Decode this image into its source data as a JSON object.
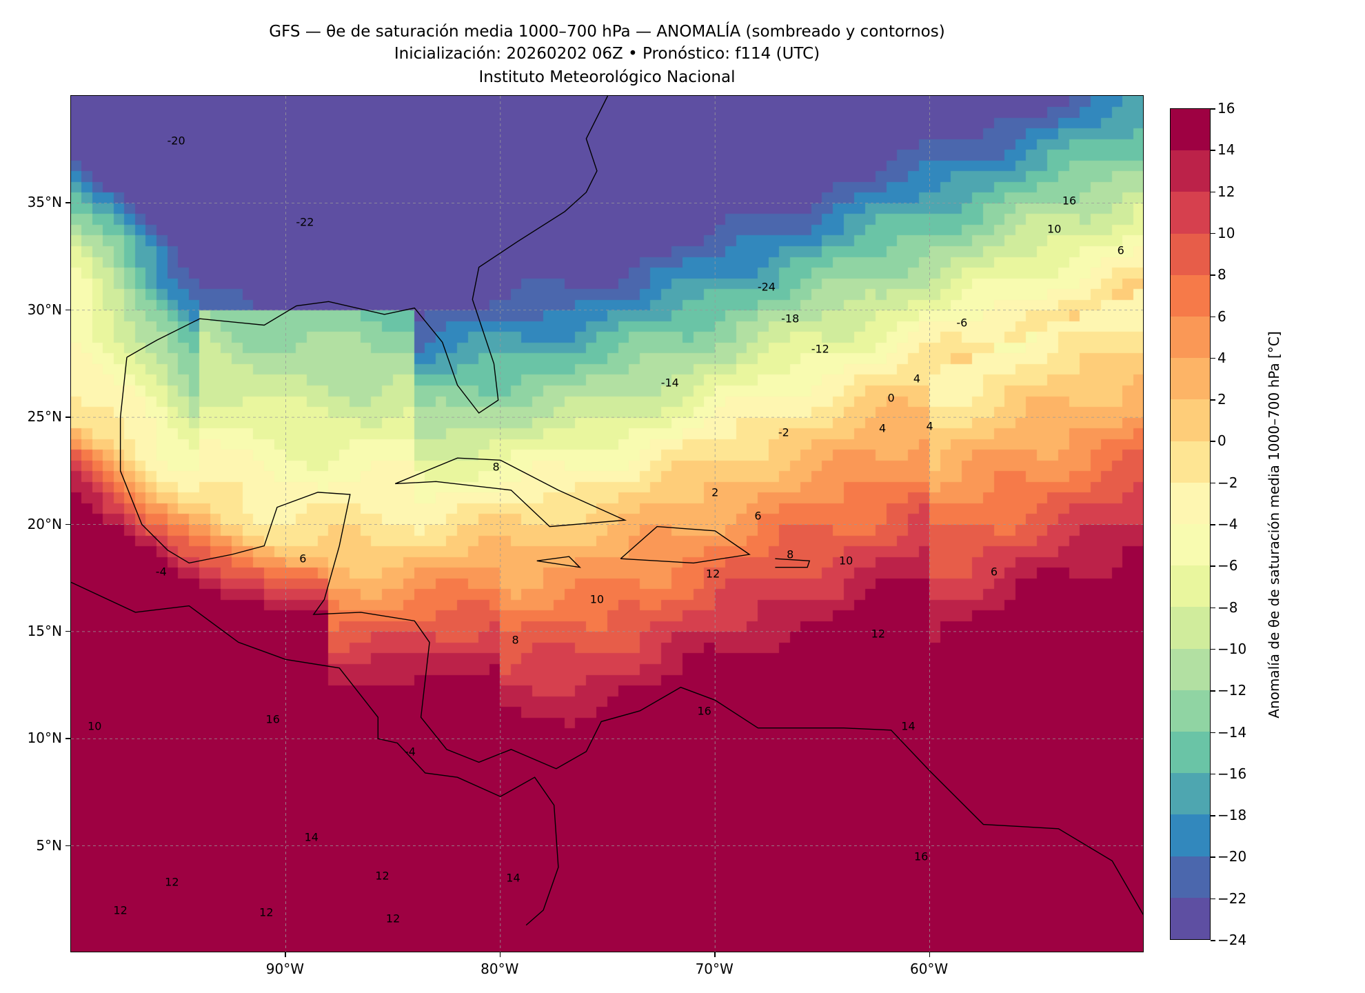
{
  "title": {
    "line1": "GFS — θe de saturación media 1000–700 hPa — ANOMALÍA (sombreado y contornos)",
    "line2": "Inicialización: 20260202 06Z   •   Pronóstico: f114 (UTC)",
    "line3": "Instituto Meteorológico Nacional"
  },
  "chart_data": {
    "type": "heatmap",
    "projection": "lat-lon",
    "lon_range": [
      -100,
      -50
    ],
    "lat_range": [
      0,
      40
    ],
    "xticks": [
      {
        "value": -90,
        "label": "90°W"
      },
      {
        "value": -80,
        "label": "80°W"
      },
      {
        "value": -70,
        "label": "70°W"
      },
      {
        "value": -60,
        "label": "60°W"
      }
    ],
    "yticks": [
      {
        "value": 35,
        "label": "35°N"
      },
      {
        "value": 30,
        "label": "30°N"
      },
      {
        "value": 25,
        "label": "25°N"
      },
      {
        "value": 20,
        "label": "20°N"
      },
      {
        "value": 15,
        "label": "15°N"
      },
      {
        "value": 10,
        "label": "10°N"
      },
      {
        "value": 5,
        "label": "5°N"
      }
    ],
    "grid": true,
    "colorbar": {
      "label": "Anomalía de θe de saturación media 1000–700 hPa [°C]",
      "range": [
        -24,
        16
      ],
      "levels": [
        16,
        14,
        12,
        10,
        8,
        6,
        4,
        2,
        0,
        -2,
        -4,
        -6,
        -8,
        -10,
        -12,
        -14,
        -16,
        -18,
        -20,
        -22,
        -24
      ],
      "tick_labels": [
        "16",
        "14",
        "12",
        "10",
        "8",
        "6",
        "4",
        "2",
        "0",
        "−2",
        "−4",
        "−6",
        "−8",
        "−10",
        "−12",
        "−14",
        "−16",
        "−18",
        "−20",
        "−22",
        "−24"
      ],
      "colors": [
        "#9e0142",
        "#bc2249",
        "#d6404e",
        "#e75d49",
        "#f67a49",
        "#fa9856",
        "#fdb466",
        "#fecd79",
        "#fee593",
        "#fef6b1",
        "#f8fbb0",
        "#e9f69e",
        "#d0ec9c",
        "#b2e0a2",
        "#90d4a3",
        "#6ac4a6",
        "#4ea6b0",
        "#3288bd",
        "#4b67ad",
        "#5e4fa2"
      ]
    },
    "contour_labels": [
      {
        "text": "-20",
        "lon": -95.1,
        "lat": 37.9
      },
      {
        "text": "-22",
        "lon": -89.1,
        "lat": 34.1
      },
      {
        "text": "-24",
        "lon": -67.6,
        "lat": 31.1
      },
      {
        "text": "-18",
        "lon": -66.5,
        "lat": 29.6
      },
      {
        "text": "-12",
        "lon": -65.1,
        "lat": 28.2
      },
      {
        "text": "-14",
        "lon": -72.1,
        "lat": 26.6
      },
      {
        "text": "-6",
        "lon": -58.5,
        "lat": 29.4
      },
      {
        "text": "16",
        "lon": -53.5,
        "lat": 35.1
      },
      {
        "text": "10",
        "lon": -54.2,
        "lat": 33.8
      },
      {
        "text": "6",
        "lon": -51.1,
        "lat": 32.8
      },
      {
        "text": "4",
        "lon": -60.6,
        "lat": 26.8
      },
      {
        "text": "0",
        "lon": -61.8,
        "lat": 25.9
      },
      {
        "text": "-2",
        "lon": -66.8,
        "lat": 24.3
      },
      {
        "text": "4",
        "lon": -62.2,
        "lat": 24.5
      },
      {
        "text": "4",
        "lon": -60.0,
        "lat": 24.6
      },
      {
        "text": "2",
        "lon": -70.0,
        "lat": 21.5
      },
      {
        "text": "6",
        "lon": -68.0,
        "lat": 20.4
      },
      {
        "text": "8",
        "lon": -80.2,
        "lat": 22.7
      },
      {
        "text": "6",
        "lon": -89.2,
        "lat": 18.4
      },
      {
        "text": "-4",
        "lon": -95.8,
        "lat": 17.8
      },
      {
        "text": "8",
        "lon": -66.5,
        "lat": 18.6
      },
      {
        "text": "10",
        "lon": -63.9,
        "lat": 18.3
      },
      {
        "text": "12",
        "lon": -70.1,
        "lat": 17.7
      },
      {
        "text": "10",
        "lon": -75.5,
        "lat": 16.5
      },
      {
        "text": "8",
        "lon": -79.3,
        "lat": 14.6
      },
      {
        "text": "12",
        "lon": -62.4,
        "lat": 14.9
      },
      {
        "text": "6",
        "lon": -57.0,
        "lat": 17.8
      },
      {
        "text": "16",
        "lon": -70.5,
        "lat": 11.3
      },
      {
        "text": "14",
        "lon": -61.0,
        "lat": 10.6
      },
      {
        "text": "16",
        "lon": -60.4,
        "lat": 4.5
      },
      {
        "text": "16",
        "lon": -90.6,
        "lat": 10.9
      },
      {
        "text": "10",
        "lon": -98.9,
        "lat": 10.6
      },
      {
        "text": "14",
        "lon": -88.8,
        "lat": 5.4
      },
      {
        "text": "12",
        "lon": -95.3,
        "lat": 3.3
      },
      {
        "text": "12",
        "lon": -85.5,
        "lat": 3.6
      },
      {
        "text": "12",
        "lon": -90.9,
        "lat": 1.9
      },
      {
        "text": "12",
        "lon": -97.7,
        "lat": 2.0
      },
      {
        "text": "12",
        "lon": -85.0,
        "lat": 1.6
      },
      {
        "text": "14",
        "lon": -79.4,
        "lat": 3.5
      },
      {
        "text": "-4",
        "lon": -84.2,
        "lat": 9.4
      }
    ]
  }
}
